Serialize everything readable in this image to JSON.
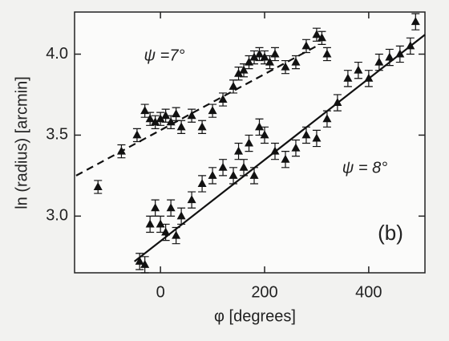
{
  "chart_data": {
    "type": "scatter",
    "xlabel": "φ  [degrees]",
    "ylabel": "ln (radius)  [arcmin]",
    "annotation": "(b)",
    "xlim": [
      -165,
      508
    ],
    "ylim": [
      2.65,
      4.26
    ],
    "xticks": [
      0,
      200,
      400
    ],
    "yticks": [
      {
        "value": 3.0,
        "label": "3.0"
      },
      {
        "value": 3.5,
        "label": "3.5"
      },
      {
        "value": 4.0,
        "label": "4.0"
      }
    ],
    "series": [
      {
        "name": "ψ =7°",
        "color": "#111111",
        "error": 0.04,
        "x": [
          -120,
          -75,
          -45,
          -30,
          -20,
          -10,
          0,
          10,
          20,
          30,
          40,
          60,
          80,
          100,
          120,
          140,
          150,
          160,
          170,
          180,
          190,
          200,
          210,
          220,
          240,
          260,
          280,
          300,
          310,
          320
        ],
        "values": [
          3.18,
          3.4,
          3.5,
          3.65,
          3.6,
          3.58,
          3.6,
          3.62,
          3.58,
          3.63,
          3.55,
          3.62,
          3.55,
          3.65,
          3.72,
          3.8,
          3.88,
          3.9,
          3.95,
          3.98,
          4.0,
          3.98,
          3.95,
          4.0,
          3.92,
          3.95,
          4.05,
          4.12,
          4.1,
          4.0
        ]
      },
      {
        "name": "ψ = 8°",
        "color": "#111111",
        "error": 0.05,
        "x": [
          -40,
          -30,
          -20,
          -10,
          0,
          10,
          20,
          30,
          40,
          60,
          80,
          100,
          120,
          140,
          150,
          160,
          170,
          180,
          190,
          200,
          220,
          240,
          260,
          280,
          300,
          320,
          340,
          360,
          380,
          400,
          420,
          440,
          460,
          480,
          490
        ],
        "values": [
          2.72,
          2.7,
          2.95,
          3.05,
          2.95,
          2.9,
          3.05,
          2.88,
          3.0,
          3.1,
          3.2,
          3.25,
          3.3,
          3.25,
          3.4,
          3.3,
          3.45,
          3.25,
          3.55,
          3.5,
          3.4,
          3.35,
          3.42,
          3.5,
          3.48,
          3.6,
          3.7,
          3.85,
          3.9,
          3.85,
          3.95,
          3.98,
          4.0,
          4.05,
          4.2
        ]
      }
    ],
    "fits": [
      {
        "style": "dashed",
        "x": [
          -162,
          300
        ],
        "y": [
          3.25,
          4.05
        ]
      },
      {
        "style": "solid",
        "x": [
          -50,
          508
        ],
        "y": [
          2.72,
          4.12
        ]
      }
    ]
  }
}
